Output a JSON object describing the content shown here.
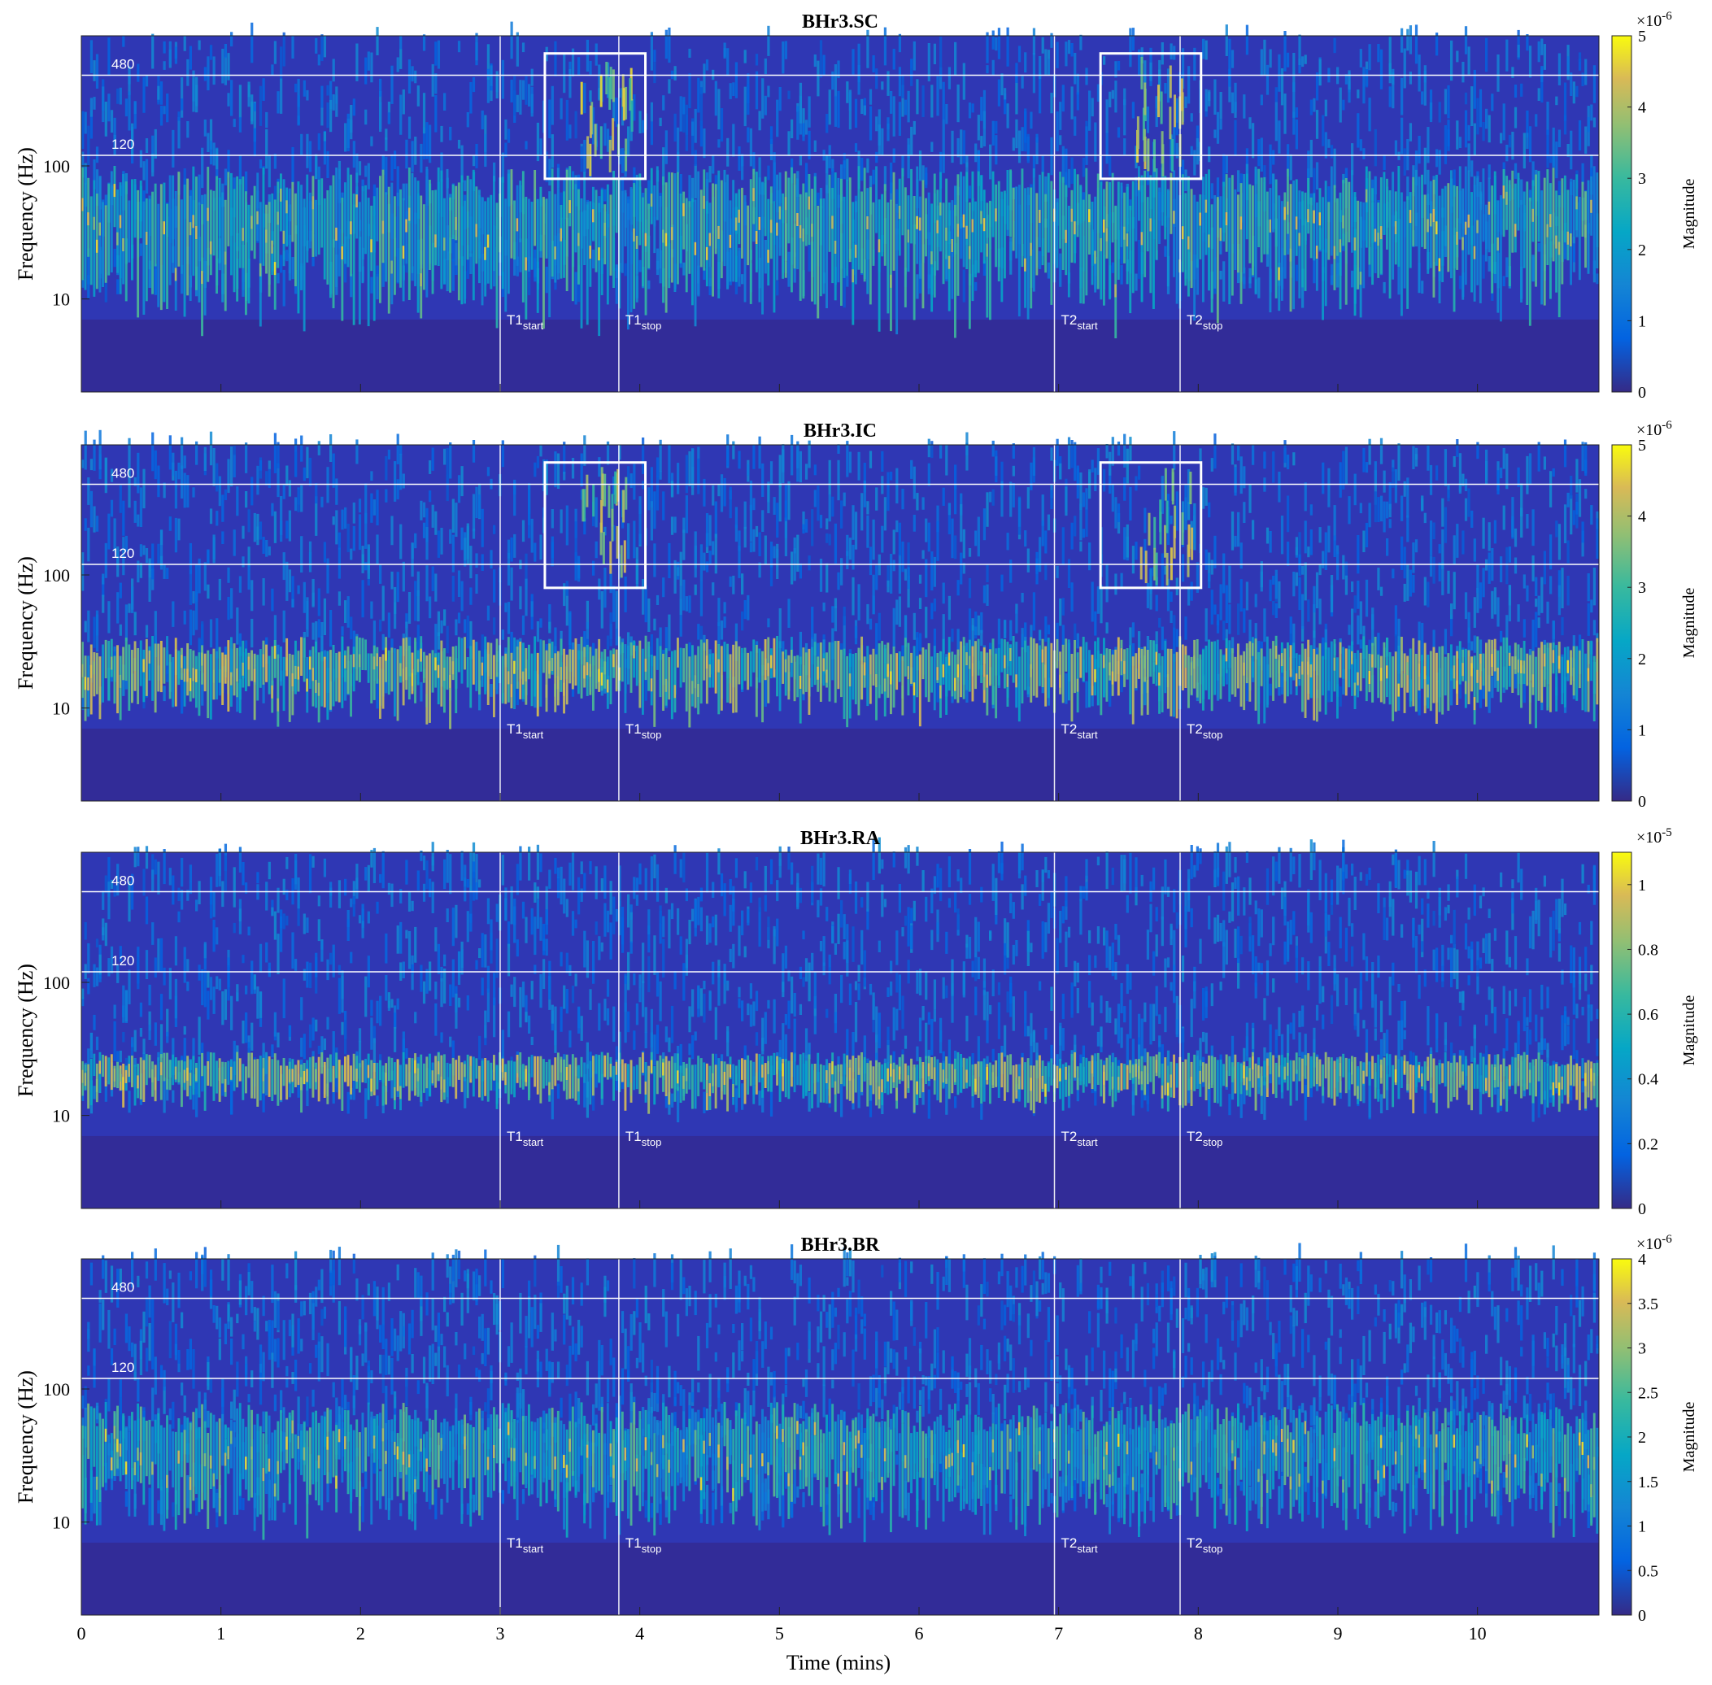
{
  "chart_data": {
    "type": "heatmap",
    "xlabel": "Time (mins)",
    "ylabel": "Frequency (Hz)",
    "xlim": [
      0,
      10.87
    ],
    "xticks": [
      0,
      1,
      2,
      3,
      4,
      5,
      6,
      7,
      8,
      9,
      10
    ],
    "ylim": [
      2,
      950
    ],
    "yscale": "log",
    "yticks": [
      10,
      100
    ],
    "reference_lines": {
      "horizontal_hz": [
        480,
        120
      ],
      "vertical": [
        {
          "label": "T1",
          "sub": "start",
          "time": 3.0
        },
        {
          "label": "T1",
          "sub": "stop",
          "time": 3.85
        },
        {
          "label": "T2",
          "sub": "start",
          "time": 6.97
        },
        {
          "label": "T2",
          "sub": "stop",
          "time": 7.87
        }
      ]
    },
    "colormap": "parula",
    "colorbar_label": "Magnitude",
    "panels": [
      {
        "title": "BHr3.SC",
        "cbar_max": 5,
        "cbar_exp": "×10-6",
        "cbar_ticks": [
          0,
          1,
          2,
          3,
          4,
          5
        ],
        "energy_band_hz": [
          10,
          100
        ],
        "boxes": [
          {
            "t0": 3.32,
            "t1": 4.04,
            "f0": 80,
            "f1": 700
          },
          {
            "t0": 7.3,
            "t1": 8.02,
            "f0": 80,
            "f1": 700
          }
        ]
      },
      {
        "title": "BHr3.IC",
        "cbar_max": 5,
        "cbar_exp": "×10-6",
        "cbar_ticks": [
          0,
          1,
          2,
          3,
          4,
          5
        ],
        "energy_band_hz": [
          10,
          35
        ],
        "boxes": [
          {
            "t0": 3.32,
            "t1": 4.04,
            "f0": 80,
            "f1": 700
          },
          {
            "t0": 7.3,
            "t1": 8.02,
            "f0": 80,
            "f1": 700
          }
        ]
      },
      {
        "title": "BHr3.RA",
        "cbar_max": 1.1,
        "cbar_exp": "×10-5",
        "cbar_ticks": [
          0,
          0.2,
          0.4,
          0.6,
          0.8,
          1
        ],
        "energy_band_hz": [
          13,
          30
        ],
        "boxes": []
      },
      {
        "title": "BHr3.BR",
        "cbar_max": 4,
        "cbar_exp": "×10-6",
        "cbar_ticks": [
          0,
          0.5,
          1,
          1.5,
          2,
          2.5,
          3,
          3.5,
          4
        ],
        "energy_band_hz": [
          12,
          80
        ],
        "boxes": []
      }
    ]
  }
}
